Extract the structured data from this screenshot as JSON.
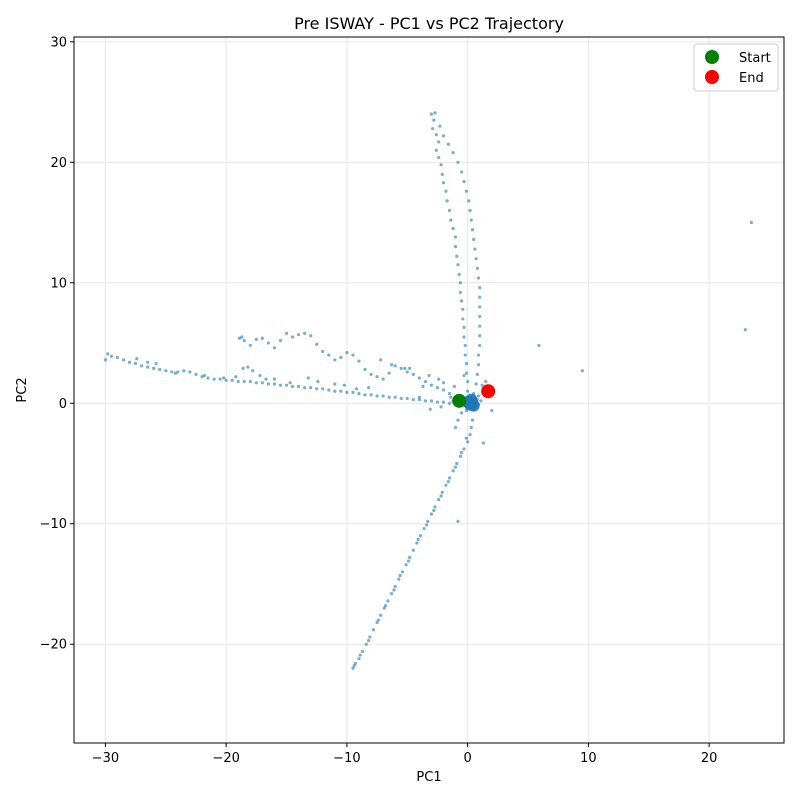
{
  "chart_data": {
    "type": "scatter",
    "title": "Pre ISWAY - PC1 vs PC2 Trajectory",
    "xlabel": "PC1",
    "ylabel": "PC2",
    "xlim": [
      -32.6,
      26.2
    ],
    "ylim": [
      -28.2,
      30.4
    ],
    "x_ticks": [
      -30,
      -20,
      -10,
      0,
      10,
      20
    ],
    "y_ticks": [
      -20,
      -10,
      0,
      10,
      20,
      30
    ],
    "x_tick_labels": [
      "−30",
      "−20",
      "−10",
      "0",
      "10",
      "20"
    ],
    "y_tick_labels": [
      "−20",
      "−10",
      "0",
      "10",
      "20",
      "30"
    ],
    "grid": true,
    "legend_position": "top-right",
    "colors": {
      "trajectory": "#1f77b4",
      "start": "#008000",
      "end": "#ff0000"
    },
    "legend": [
      {
        "label": "Start",
        "color": "#008000"
      },
      {
        "label": "End",
        "color": "#ff0000"
      }
    ],
    "series": [
      {
        "name": "trajectory",
        "marker": "dot",
        "points": [
          [
            -30,
            3.6
          ],
          [
            -29.8,
            4.1
          ],
          [
            -29.5,
            3.9
          ],
          [
            -29,
            3.8
          ],
          [
            -28.5,
            3.6
          ],
          [
            -28,
            3.4
          ],
          [
            -27.5,
            3.3
          ],
          [
            -27,
            3.1
          ],
          [
            -26.5,
            3.0
          ],
          [
            -26,
            2.9
          ],
          [
            -25.5,
            2.8
          ],
          [
            -25,
            2.7
          ],
          [
            -24.5,
            2.6
          ],
          [
            -24,
            2.6
          ],
          [
            -23.5,
            2.7
          ],
          [
            -23,
            2.6
          ],
          [
            -22.5,
            2.4
          ],
          [
            -22,
            2.2
          ],
          [
            -21.5,
            2.1
          ],
          [
            -21,
            2.0
          ],
          [
            -20.5,
            2.0
          ],
          [
            -20,
            1.9
          ],
          [
            -19.5,
            1.9
          ],
          [
            -19,
            1.8
          ],
          [
            -18.5,
            1.8
          ],
          [
            -18,
            1.8
          ],
          [
            -17.5,
            1.7
          ],
          [
            -17,
            1.7
          ],
          [
            -16.5,
            1.6
          ],
          [
            -16,
            1.6
          ],
          [
            -15.5,
            1.5
          ],
          [
            -15,
            1.5
          ],
          [
            -14.5,
            1.4
          ],
          [
            -14,
            1.4
          ],
          [
            -13.5,
            1.3
          ],
          [
            -13,
            1.3
          ],
          [
            -12.5,
            1.2
          ],
          [
            -12,
            1.2
          ],
          [
            -11.5,
            1.1
          ],
          [
            -11,
            1.0
          ],
          [
            -10.5,
            1.0
          ],
          [
            -10,
            0.9
          ],
          [
            -9.5,
            0.9
          ],
          [
            -9,
            0.8
          ],
          [
            -8.5,
            0.7
          ],
          [
            -8,
            0.7
          ],
          [
            -7.5,
            0.6
          ],
          [
            -7,
            0.6
          ],
          [
            -6.5,
            0.5
          ],
          [
            -6,
            0.5
          ],
          [
            -5.5,
            0.4
          ],
          [
            -5,
            0.4
          ],
          [
            -4.5,
            0.3
          ],
          [
            -4,
            0.3
          ],
          [
            -3.5,
            0.2
          ],
          [
            -3,
            0.2
          ],
          [
            -2.5,
            0.1
          ],
          [
            -2,
            0.1
          ],
          [
            -1.5,
            0.0
          ],
          [
            -1,
            0.0
          ],
          [
            -26.5,
            3.4
          ],
          [
            -25.8,
            3.3
          ],
          [
            -27.4,
            3.7
          ],
          [
            -24.2,
            2.5
          ],
          [
            -21.8,
            2.3
          ],
          [
            -20.2,
            2.1
          ],
          [
            -18.9,
            5.4
          ],
          [
            -18.7,
            5.5
          ],
          [
            -18.5,
            5.2
          ],
          [
            -18,
            4.8
          ],
          [
            -17.5,
            5.3
          ],
          [
            -17,
            5.4
          ],
          [
            -16.5,
            5.0
          ],
          [
            -16,
            4.6
          ],
          [
            -15.5,
            5.2
          ],
          [
            -15,
            5.8
          ],
          [
            -14.5,
            5.5
          ],
          [
            -14,
            5.7
          ],
          [
            -13.5,
            5.8
          ],
          [
            -13,
            5.6
          ],
          [
            -12.5,
            4.9
          ],
          [
            -12,
            4.3
          ],
          [
            -11.5,
            4.0
          ],
          [
            -11,
            3.6
          ],
          [
            -10.5,
            3.8
          ],
          [
            -10,
            4.2
          ],
          [
            -9.5,
            4.0
          ],
          [
            -9,
            3.5
          ],
          [
            -8.5,
            2.8
          ],
          [
            -8,
            2.4
          ],
          [
            -7.5,
            2.2
          ],
          [
            -7,
            2.0
          ],
          [
            -6.5,
            2.5
          ],
          [
            -6,
            3.1
          ],
          [
            -5.5,
            2.9
          ],
          [
            -5,
            2.6
          ],
          [
            -4.5,
            2.4
          ],
          [
            -4,
            2.1
          ],
          [
            -3.5,
            1.8
          ],
          [
            -3,
            1.5
          ],
          [
            -2.5,
            1.3
          ],
          [
            -2,
            1.1
          ],
          [
            -1.5,
            0.8
          ],
          [
            -19.2,
            2.2
          ],
          [
            -18.6,
            2.9
          ],
          [
            -18.2,
            3.0
          ],
          [
            -17.8,
            2.7
          ],
          [
            -17.2,
            2.3
          ],
          [
            -16.7,
            2.0
          ],
          [
            -16,
            2.0
          ],
          [
            -14.7,
            1.7
          ],
          [
            -13.2,
            2.1
          ],
          [
            -12.4,
            1.8
          ],
          [
            -11,
            1.6
          ],
          [
            -10.2,
            1.5
          ],
          [
            -9.2,
            1.2
          ],
          [
            -8.2,
            1.3
          ],
          [
            -7.2,
            3.6
          ],
          [
            -6.3,
            3.2
          ],
          [
            -5.2,
            2.9
          ],
          [
            -4.8,
            2.9
          ],
          [
            -3.2,
            2.3
          ],
          [
            -2.4,
            2.0
          ],
          [
            -2.0,
            1.7
          ],
          [
            -3,
            24
          ],
          [
            -2.8,
            23.5
          ],
          [
            -2.9,
            22.8
          ],
          [
            -2.6,
            22.3
          ],
          [
            -2.4,
            21.7
          ],
          [
            -2.6,
            21.0
          ],
          [
            -2.4,
            20.4
          ],
          [
            -2.2,
            19.8
          ],
          [
            -2.1,
            19.0
          ],
          [
            -2.0,
            18.3
          ],
          [
            -1.8,
            17.6
          ],
          [
            -1.7,
            16.8
          ],
          [
            -1.5,
            16.0
          ],
          [
            -1.4,
            15.2
          ],
          [
            -1.2,
            14.5
          ],
          [
            -1.0,
            13.8
          ],
          [
            -1.0,
            13.0
          ],
          [
            -0.9,
            12.2
          ],
          [
            -0.8,
            11.5
          ],
          [
            -0.7,
            10.7
          ],
          [
            -0.6,
            10.0
          ],
          [
            -0.6,
            9.2
          ],
          [
            -0.5,
            8.5
          ],
          [
            -0.4,
            7.8
          ],
          [
            -0.4,
            7.0
          ],
          [
            -0.3,
            6.3
          ],
          [
            -0.3,
            5.5
          ],
          [
            -0.2,
            4.8
          ],
          [
            -0.2,
            4.0
          ],
          [
            -0.1,
            3.3
          ],
          [
            -0.1,
            2.5
          ],
          [
            0,
            1.8
          ],
          [
            0,
            1.0
          ],
          [
            -2.7,
            24.1
          ],
          [
            -2.3,
            23.0
          ],
          [
            -2.0,
            22.2
          ],
          [
            -1.6,
            21.5
          ],
          [
            -1.2,
            20.8
          ],
          [
            -0.8,
            20.0
          ],
          [
            -0.5,
            19.2
          ],
          [
            -0.3,
            18.4
          ],
          [
            -0.1,
            17.6
          ],
          [
            0.1,
            16.8
          ],
          [
            0.2,
            16.0
          ],
          [
            0.3,
            15.2
          ],
          [
            0.4,
            14.4
          ],
          [
            0.5,
            13.6
          ],
          [
            0.6,
            12.8
          ],
          [
            0.7,
            12.0
          ],
          [
            0.8,
            11.2
          ],
          [
            0.9,
            10.4
          ],
          [
            1.0,
            9.6
          ],
          [
            1.0,
            8.8
          ],
          [
            1.0,
            8.0
          ],
          [
            1.0,
            7.2
          ],
          [
            1.0,
            6.4
          ],
          [
            1.0,
            5.6
          ],
          [
            1.0,
            4.8
          ],
          [
            0.9,
            4.0
          ],
          [
            0.9,
            3.2
          ],
          [
            0.8,
            2.4
          ],
          [
            0.7,
            1.6
          ],
          [
            0.5,
            0.8
          ],
          [
            -9.5,
            -22
          ],
          [
            -9.3,
            -21.6
          ],
          [
            -9.0,
            -21.2
          ],
          [
            -8.7,
            -20.6
          ],
          [
            -8.4,
            -20.0
          ],
          [
            -8.1,
            -19.4
          ],
          [
            -7.8,
            -18.8
          ],
          [
            -7.5,
            -18.2
          ],
          [
            -7.2,
            -17.6
          ],
          [
            -6.9,
            -17.0
          ],
          [
            -6.6,
            -16.4
          ],
          [
            -6.3,
            -15.8
          ],
          [
            -6.0,
            -15.2
          ],
          [
            -5.7,
            -14.6
          ],
          [
            -5.4,
            -14.0
          ],
          [
            -5.1,
            -13.4
          ],
          [
            -4.8,
            -12.8
          ],
          [
            -4.5,
            -12.2
          ],
          [
            -4.2,
            -11.6
          ],
          [
            -3.9,
            -11.0
          ],
          [
            -3.6,
            -10.4
          ],
          [
            -3.3,
            -9.8
          ],
          [
            -3.0,
            -9.2
          ],
          [
            -2.7,
            -8.6
          ],
          [
            -2.4,
            -8.0
          ],
          [
            -2.1,
            -7.4
          ],
          [
            -1.8,
            -6.8
          ],
          [
            -1.5,
            -6.2
          ],
          [
            -1.2,
            -5.6
          ],
          [
            -0.9,
            -5.0
          ],
          [
            -0.6,
            -4.4
          ],
          [
            -0.3,
            -3.8
          ],
          [
            0,
            -3.2
          ],
          [
            0.2,
            -2.6
          ],
          [
            0.3,
            -2.0
          ],
          [
            0.4,
            -1.4
          ],
          [
            -9.4,
            -21.8
          ],
          [
            -8.9,
            -20.9
          ],
          [
            -8.2,
            -19.7
          ],
          [
            -7.4,
            -18.0
          ],
          [
            -6.8,
            -16.8
          ],
          [
            -6.1,
            -15.5
          ],
          [
            -5.6,
            -14.3
          ],
          [
            -4.9,
            -13.1
          ],
          [
            -4.1,
            -11.3
          ],
          [
            -3.4,
            -10.1
          ],
          [
            -2.8,
            -8.9
          ],
          [
            -2.2,
            -7.7
          ],
          [
            -1.6,
            -6.5
          ],
          [
            -1.0,
            -5.3
          ],
          [
            -0.5,
            -4.1
          ],
          [
            -0.1,
            -2.9
          ],
          [
            -1.0,
            -2.0
          ],
          [
            -0.8,
            -1.4
          ],
          [
            -0.5,
            -0.8
          ],
          [
            -0.5,
            0.3
          ],
          [
            -0.2,
            0.4
          ],
          [
            0.1,
            0.2
          ],
          [
            0.3,
            -0.1
          ],
          [
            0.5,
            0.1
          ],
          [
            0.6,
            -0.2
          ],
          [
            0.4,
            -0.3
          ],
          [
            0.2,
            -0.5
          ],
          [
            0,
            -0.4
          ],
          [
            -0.2,
            -0.2
          ],
          [
            0.7,
            0.0
          ],
          [
            0.8,
            0.3
          ],
          [
            0.9,
            -0.1
          ],
          [
            0.3,
            0.5
          ],
          [
            -0.1,
            -0.6
          ],
          [
            0.6,
            0.5
          ],
          [
            0.2,
            0.1
          ],
          [
            0.4,
            0.2
          ],
          [
            0.1,
            -0.2
          ],
          [
            0.5,
            -0.4
          ],
          [
            -0.3,
            0.1
          ],
          [
            1.1,
            0.2
          ],
          [
            0.9,
            0.6
          ],
          [
            1.3,
            -3.3
          ],
          [
            1.2,
            1.5
          ],
          [
            1.5,
            1.8
          ],
          [
            2.0,
            -0.6
          ],
          [
            -0.3,
            2.3
          ],
          [
            -1.1,
            1.4
          ],
          [
            -1.4,
            0.5
          ],
          [
            -2.2,
            -0.3
          ],
          [
            -3.1,
            -0.5
          ],
          [
            -4.0,
            0.5
          ],
          [
            -3.7,
            1.4
          ],
          [
            -1.2,
            0.2
          ],
          [
            -0.8,
            -9.8
          ],
          [
            5.9,
            4.8
          ],
          [
            9.5,
            2.7
          ],
          [
            23,
            6.1
          ],
          [
            23.5,
            15
          ]
        ]
      },
      {
        "name": "Start",
        "marker": "large",
        "points": [
          [
            -0.7,
            0.2
          ]
        ]
      },
      {
        "name": "End",
        "marker": "large",
        "points": [
          [
            1.7,
            1.0
          ]
        ]
      }
    ]
  }
}
